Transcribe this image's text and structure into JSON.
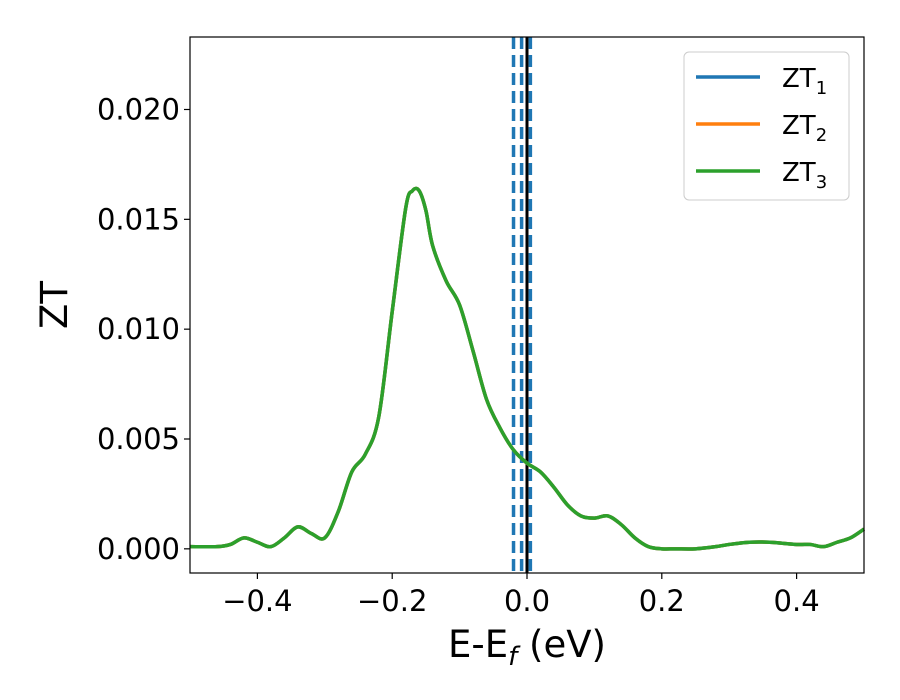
{
  "chart_data": {
    "type": "line",
    "title": "",
    "xlabel": "E-E",
    "xlabel_sub": "f",
    "xlabel_unit": " (eV)",
    "ylabel": "ZT",
    "xlim": [
      -0.5,
      0.5
    ],
    "ylim": [
      -0.0011,
      0.0233
    ],
    "x_ticks": [
      -0.4,
      -0.2,
      0.0,
      0.2,
      0.4
    ],
    "x_tick_labels": [
      "−0.4",
      "−0.2",
      "0.0",
      "0.2",
      "0.4"
    ],
    "y_ticks": [
      0.0,
      0.005,
      0.01,
      0.015,
      0.02
    ],
    "y_tick_labels": [
      "0.000",
      "0.005",
      "0.010",
      "0.015",
      "0.020"
    ],
    "grid": false,
    "legend_position": "top-right",
    "series": [
      {
        "name": "ZT",
        "sub": "1",
        "color": "#1f77b4"
      },
      {
        "name": "ZT",
        "sub": "2",
        "color": "#ff7f0e"
      },
      {
        "name": "ZT",
        "sub": "3",
        "color": "#2ca02c"
      }
    ],
    "x": [
      -0.5,
      -0.46,
      -0.44,
      -0.42,
      -0.4,
      -0.38,
      -0.36,
      -0.34,
      -0.32,
      -0.3,
      -0.28,
      -0.26,
      -0.24,
      -0.22,
      -0.2,
      -0.18,
      -0.17,
      -0.16,
      -0.15,
      -0.14,
      -0.12,
      -0.1,
      -0.08,
      -0.06,
      -0.04,
      -0.02,
      0.0,
      0.02,
      0.04,
      0.06,
      0.08,
      0.1,
      0.12,
      0.14,
      0.16,
      0.18,
      0.2,
      0.22,
      0.25,
      0.28,
      0.3,
      0.33,
      0.36,
      0.4,
      0.42,
      0.44,
      0.46,
      0.48,
      0.5
    ],
    "y": [
      0.0001,
      0.0001,
      0.0002,
      0.0005,
      0.0003,
      0.0001,
      0.0005,
      0.001,
      0.0007,
      0.0005,
      0.0017,
      0.0035,
      0.0043,
      0.006,
      0.0108,
      0.0155,
      0.0163,
      0.0163,
      0.0154,
      0.0138,
      0.0122,
      0.0111,
      0.009,
      0.0068,
      0.0055,
      0.0045,
      0.0039,
      0.0035,
      0.0028,
      0.002,
      0.0015,
      0.0014,
      0.0015,
      0.0011,
      0.0005,
      0.0001,
      0.0,
      0.0,
      0.0,
      0.0001,
      0.0002,
      0.0003,
      0.0003,
      0.0002,
      0.0002,
      0.0001,
      0.0003,
      0.0005,
      0.0009
    ],
    "vlines": [
      {
        "x": 0.0,
        "color": "#000000",
        "style": "solid"
      },
      {
        "x": -0.02,
        "color": "#1f77b4",
        "style": "dashed"
      },
      {
        "x": -0.008,
        "color": "#1f77b4",
        "style": "dashed"
      },
      {
        "x": 0.005,
        "color": "#1f77b4",
        "style": "dashed"
      }
    ]
  }
}
